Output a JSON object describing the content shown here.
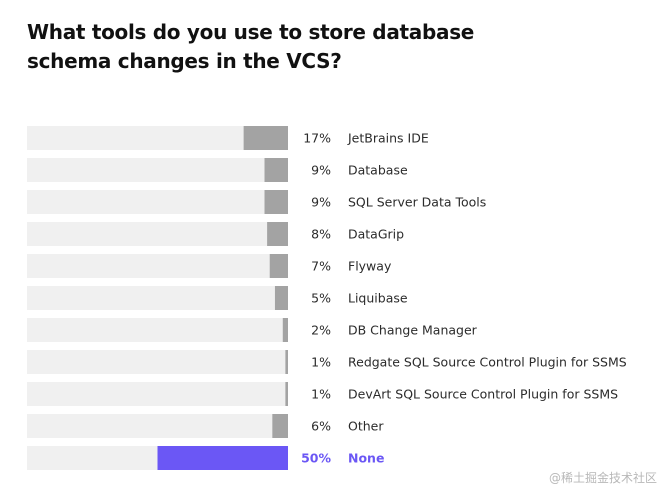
{
  "chart_data": {
    "type": "bar",
    "orientation": "horizontal",
    "title": "What tools do you use to store database schema changes in the VCS?",
    "categories": [
      "JetBrains IDE",
      "Database",
      "SQL Server Data Tools",
      "DataGrip",
      "Flyway",
      "Liquibase",
      "DB Change Manager",
      "Redgate SQL Source Control Plugin for SSMS",
      "DevArt SQL Source Control Plugin for SSMS",
      "Other",
      "None"
    ],
    "values": [
      17,
      9,
      9,
      8,
      7,
      5,
      2,
      1,
      1,
      6,
      50
    ],
    "value_labels": [
      "17%",
      "9%",
      "9%",
      "8%",
      "7%",
      "5%",
      "2%",
      "1%",
      "1%",
      "6%",
      "50%"
    ],
    "highlighted": [
      false,
      false,
      false,
      false,
      false,
      false,
      false,
      false,
      false,
      false,
      true
    ],
    "xlim": [
      0,
      100
    ],
    "unit": "%"
  },
  "colors": {
    "bar": "#a3a3a3",
    "highlight_bar": "#6b57f5",
    "track": "#f0f0f0",
    "highlight_text": "#6b57f5"
  },
  "watermark": "@稀土掘金技术社区"
}
